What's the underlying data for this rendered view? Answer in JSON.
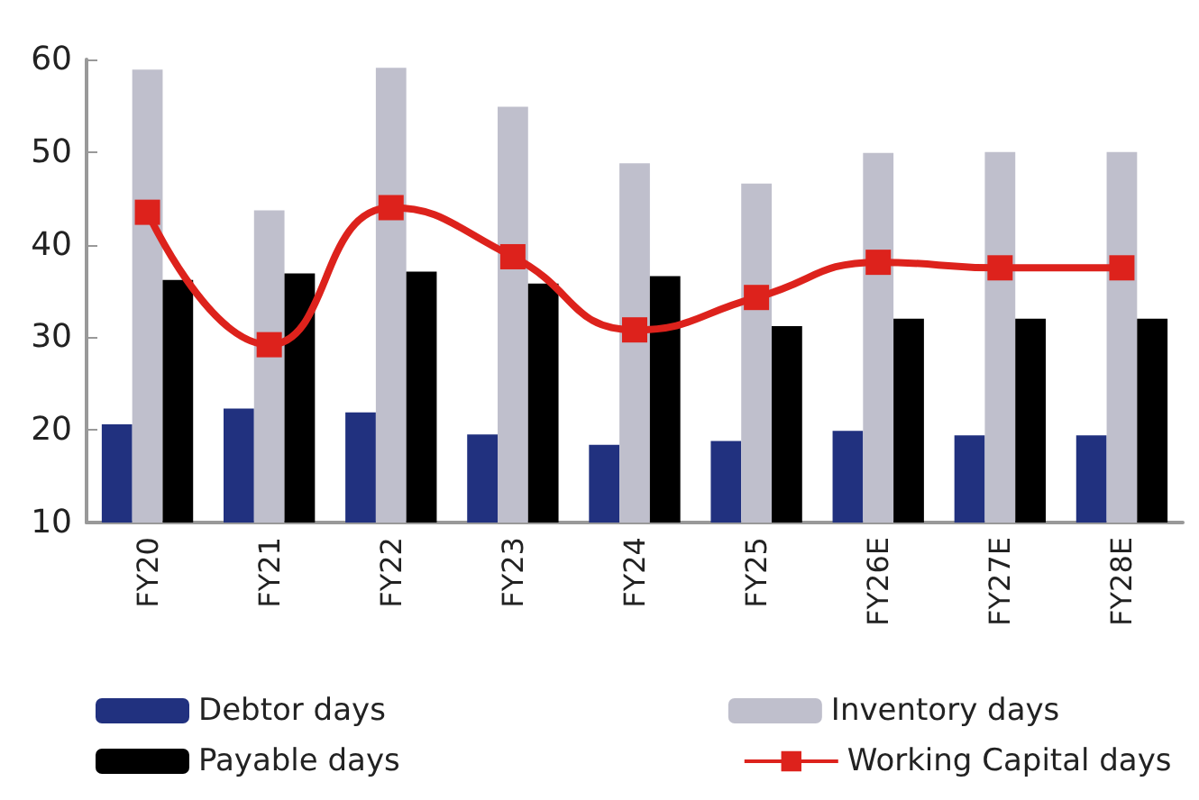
{
  "chart_data": {
    "type": "bar",
    "categories": [
      "FY20",
      "FY21",
      "FY22",
      "FY23",
      "FY24",
      "FY25",
      "FY26E",
      "FY27E",
      "FY28E"
    ],
    "series": [
      {
        "name": "Debtor days",
        "color": "#21317f",
        "values": [
          20.6,
          22.3,
          21.9,
          19.5,
          18.4,
          18.8,
          19.9,
          19.4,
          19.4
        ]
      },
      {
        "name": "Inventory days",
        "color": "#bfbfcc",
        "values": [
          58.9,
          43.7,
          59.1,
          54.9,
          48.8,
          46.6,
          49.9,
          50,
          50
        ]
      },
      {
        "name": "Payable days",
        "color": "#000000",
        "values": [
          36.2,
          36.9,
          37.1,
          35.8,
          36.6,
          31.2,
          32,
          32,
          32
        ]
      },
      {
        "name": "Working Capital days",
        "type": "line",
        "color": "#dd221c",
        "marker": "square",
        "values": [
          43.5,
          29.2,
          44,
          38.7,
          30.8,
          34.3,
          38.1,
          37.5,
          37.5
        ]
      }
    ],
    "ylim": [
      10,
      60
    ],
    "yticks": [
      10,
      20,
      30,
      40,
      50,
      60
    ],
    "grid": false,
    "legend": "bottom"
  }
}
